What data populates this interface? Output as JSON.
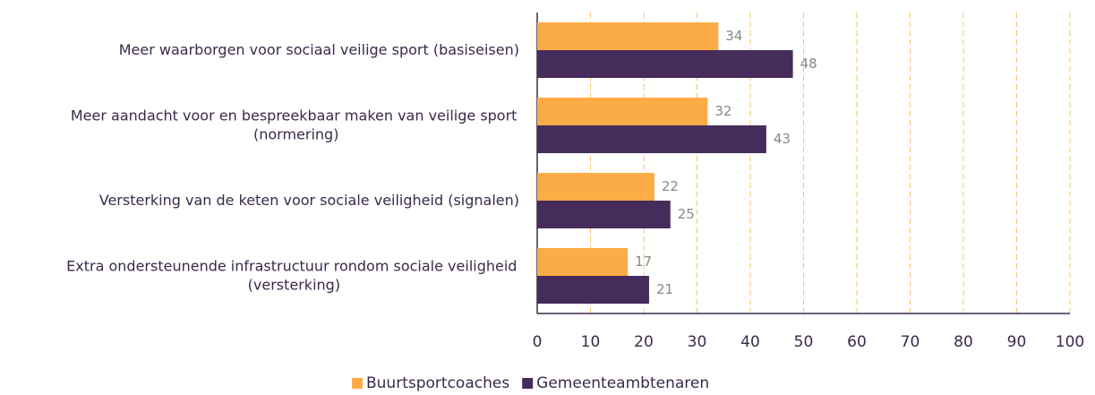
{
  "chart_data": {
    "type": "bar",
    "orientation": "horizontal",
    "categories": [
      "Meer waarborgen voor sociaal veilige sport (basiseisen)",
      "Meer aandacht voor en bespreekbaar maken van veilige sport (normering)",
      "Versterking van de keten voor sociale veiligheid (signalen)",
      "Extra ondersteunende infrastructuur rondom sociale veiligheid (versterking)"
    ],
    "series": [
      {
        "name": "Buurtsportcoaches",
        "color": "#fbac47",
        "values": [
          34,
          32,
          22,
          17
        ]
      },
      {
        "name": "Gemeenteambtenaren",
        "color": "#452c5a",
        "values": [
          48,
          43,
          25,
          21
        ]
      }
    ],
    "xlim": [
      0,
      100
    ],
    "xticks": [
      0,
      10,
      20,
      30,
      40,
      50,
      60,
      70,
      80,
      90,
      100
    ],
    "grid": true,
    "grid_color": "#f5c66e",
    "legend": "bottom"
  }
}
